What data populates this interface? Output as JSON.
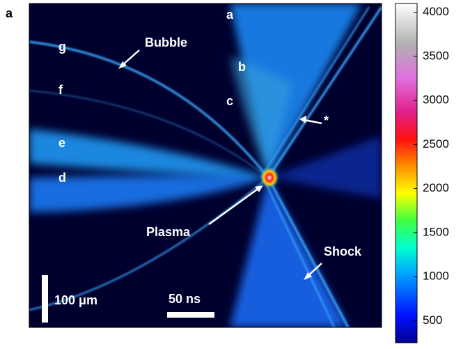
{
  "panel_label": "a",
  "annotations": {
    "a": "a",
    "b": "b",
    "c": "c",
    "d": "d",
    "e": "e",
    "f": "f",
    "g": "g",
    "bubble": "Bubble",
    "plasma": "Plasma",
    "shock": "Shock",
    "star": "*"
  },
  "scale_bars": {
    "length": "100 μm",
    "time": "50 ns"
  },
  "colorbar": {
    "lim": [
      250,
      4100
    ],
    "ticks": [
      500,
      1000,
      1500,
      2000,
      2500,
      3000,
      3500,
      4000
    ]
  }
}
